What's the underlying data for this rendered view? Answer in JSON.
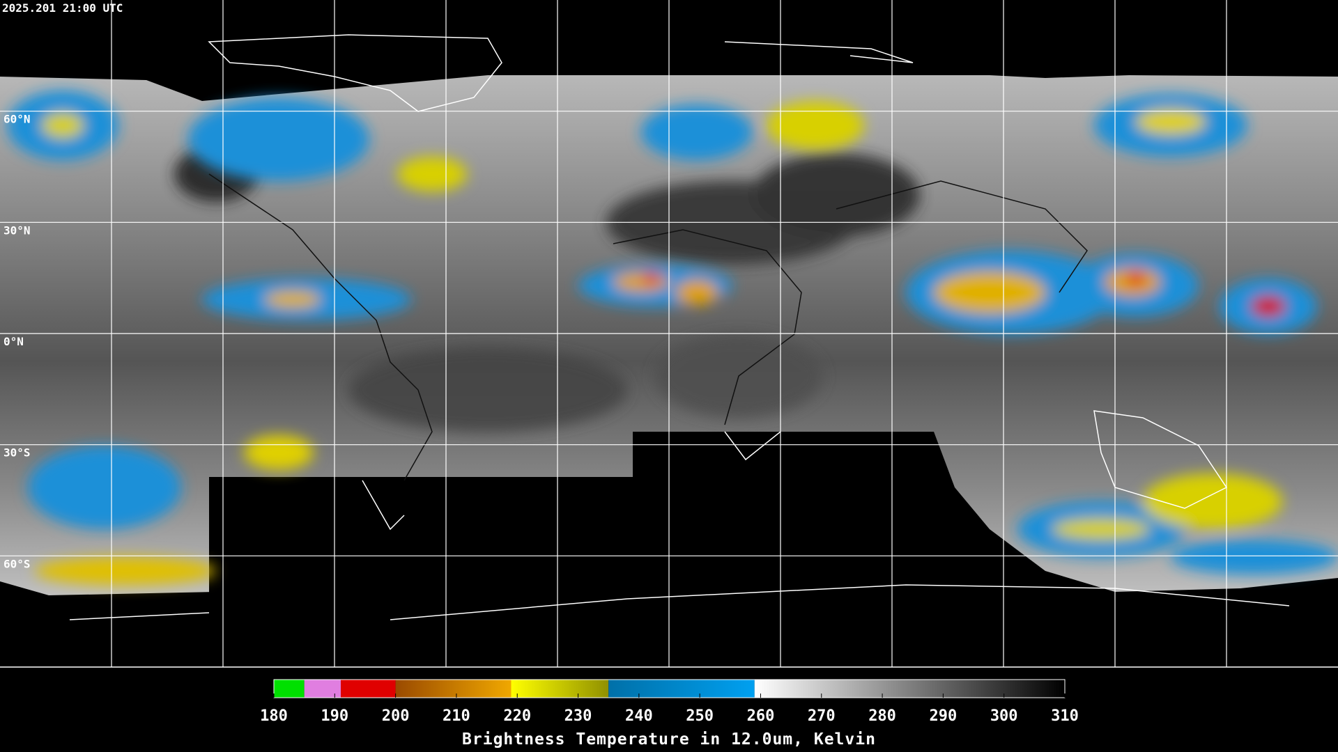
{
  "header": {
    "timestamp": "2025.201 21:00 UTC"
  },
  "map": {
    "lat_ticks": [
      {
        "value": 60,
        "label": "60°N"
      },
      {
        "value": 30,
        "label": "30°N"
      },
      {
        "value": 0,
        "label": "0°N"
      },
      {
        "value": -30,
        "label": "30°S"
      },
      {
        "value": -60,
        "label": "60°S"
      }
    ],
    "latlim": [
      90,
      -90
    ]
  },
  "colorbar": {
    "title": "Brightness Temperature in 12.0um, Kelvin",
    "xlim": [
      180,
      310
    ],
    "xticks": [
      180,
      190,
      200,
      210,
      220,
      230,
      240,
      250,
      260,
      270,
      280,
      290,
      300,
      310
    ],
    "color_stops": [
      {
        "from": 180,
        "to": 185,
        "colors": [
          "#00e000",
          "#00e000"
        ]
      },
      {
        "from": 185,
        "to": 191,
        "colors": [
          "#e07ee0",
          "#e07ee0"
        ]
      },
      {
        "from": 191,
        "to": 200,
        "colors": [
          "#e00000",
          "#e00000"
        ]
      },
      {
        "from": 200,
        "to": 219,
        "colors": [
          "#9a4a00",
          "#f0a800"
        ]
      },
      {
        "from": 219,
        "to": 235,
        "colors": [
          "#ffff00",
          "#909000"
        ]
      },
      {
        "from": 235,
        "to": 259,
        "colors": [
          "#0070a8",
          "#00a0f0"
        ]
      },
      {
        "from": 259,
        "to": 310,
        "colors": [
          "#ffffff",
          "#000000"
        ]
      }
    ]
  }
}
